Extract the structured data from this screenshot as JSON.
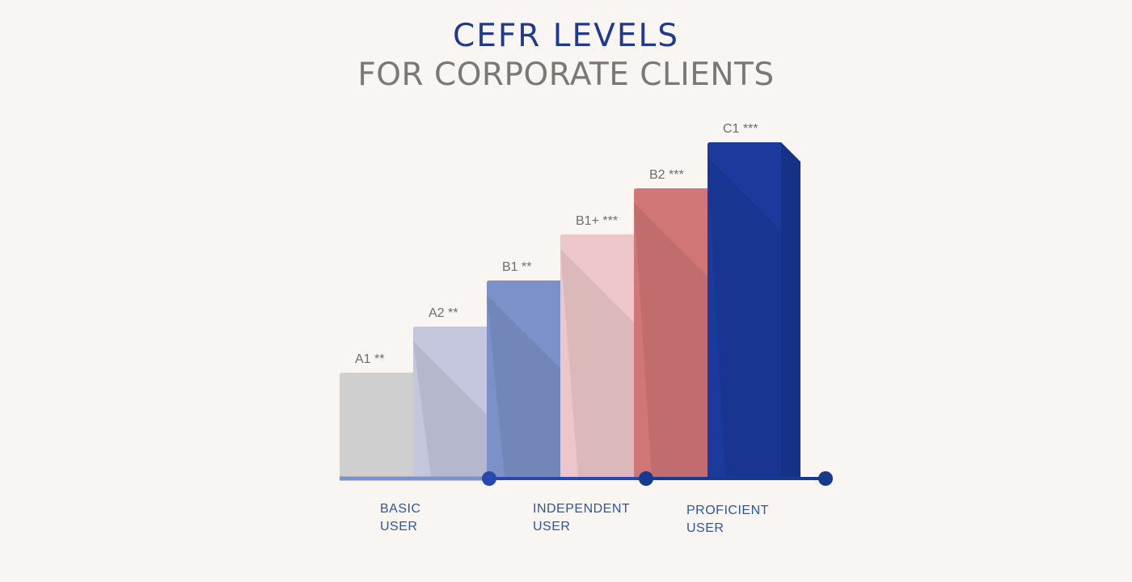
{
  "title": {
    "line1": "CEFR LEVELS",
    "line2": "FOR CORPORATE CLIENTS"
  },
  "chart_data": {
    "type": "bar",
    "categories": [
      "A1 **",
      "A2 **",
      "B1 **",
      "B1+ ***",
      "B2 ***",
      "C1 ***"
    ],
    "values": [
      1,
      2,
      3,
      4,
      5,
      6
    ],
    "colors": [
      "#cfcfcf",
      "#c3c6dc",
      "#7b91c8",
      "#ecc6c9",
      "#d07676",
      "#1a3a9c"
    ],
    "groups": [
      {
        "line1": "BASIC",
        "line2": "USER"
      },
      {
        "line1": "INDEPENDENT",
        "line2": "USER"
      },
      {
        "line1": "PROFICIENT",
        "line2": "USER"
      }
    ],
    "axis_colors": [
      "#7b91c8",
      "#2748ad",
      "#163a8e"
    ]
  }
}
